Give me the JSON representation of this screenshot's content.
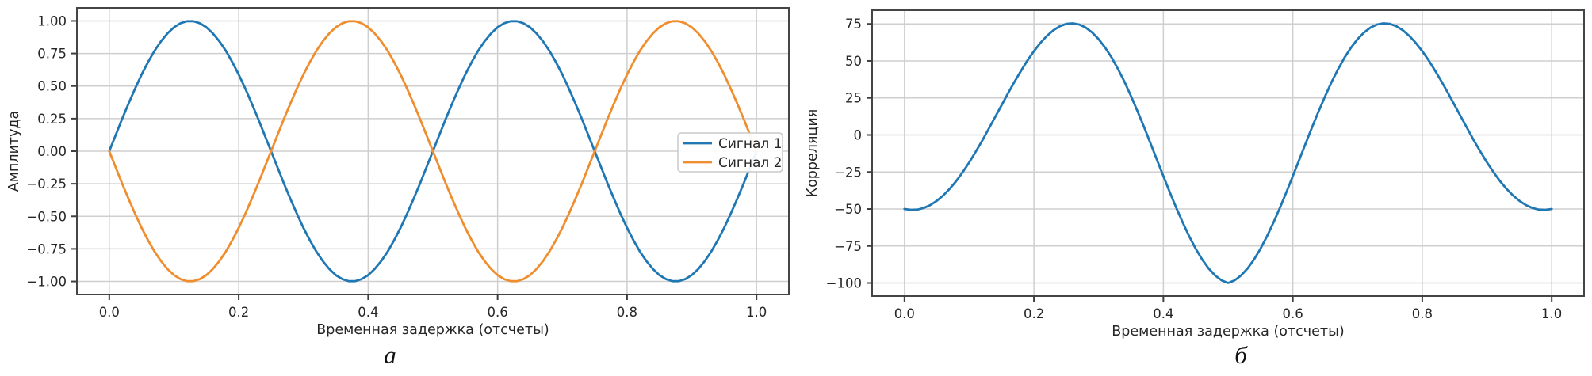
{
  "figure": {
    "background": "#ffffff",
    "grid_color": "#cfcfcf",
    "spine_color": "#454545",
    "tick_color": "#3f3f3f",
    "text_color": "#262626",
    "accent_blue": "#1f77b4",
    "accent_orange": "#ef8e2e"
  },
  "chart_data": [
    {
      "id": "signals",
      "type": "line",
      "title": "",
      "xlabel": "Временная задержка (отсчеты)",
      "ylabel": "Амплитуда",
      "caption": "а",
      "grid": true,
      "xlim": [
        -0.05,
        1.05
      ],
      "ylim": [
        -1.1,
        1.1
      ],
      "xticks": {
        "values": [
          0,
          0.2,
          0.4,
          0.6,
          0.8,
          1.0
        ],
        "labels": [
          "0.0",
          "0.2",
          "0.4",
          "0.6",
          "0.8",
          "1.0"
        ]
      },
      "yticks": {
        "values": [
          1.0,
          0.75,
          0.5,
          0.25,
          0.0,
          -0.25,
          -0.5,
          -0.75,
          -1.0
        ],
        "labels": [
          "1.00",
          "0.75",
          "0.50",
          "0.25",
          "0.00",
          "−0.25",
          "−0.50",
          "−0.75",
          "−1.00"
        ]
      },
      "legend": {
        "position": "center-right",
        "entries": [
          "Сигнал 1",
          "Сигнал 2"
        ]
      },
      "x": [
        0,
        0.01,
        0.02,
        0.03,
        0.04,
        0.05,
        0.06,
        0.07,
        0.08,
        0.09,
        0.1,
        0.11,
        0.12,
        0.13,
        0.14,
        0.15,
        0.16,
        0.17,
        0.18,
        0.19,
        0.2,
        0.21,
        0.22,
        0.23,
        0.24,
        0.25,
        0.26,
        0.27,
        0.28,
        0.29,
        0.3,
        0.31,
        0.32,
        0.33,
        0.34,
        0.35,
        0.36,
        0.37,
        0.38,
        0.39,
        0.4,
        0.41,
        0.42,
        0.43,
        0.44,
        0.45,
        0.46,
        0.47,
        0.48,
        0.49,
        0.5,
        0.51,
        0.52,
        0.53,
        0.54,
        0.55,
        0.56,
        0.57,
        0.58,
        0.59,
        0.6,
        0.61,
        0.62,
        0.63,
        0.64,
        0.65,
        0.66,
        0.67,
        0.68,
        0.69,
        0.7,
        0.71,
        0.72,
        0.73,
        0.74,
        0.75,
        0.76,
        0.77,
        0.78,
        0.79,
        0.8,
        0.81,
        0.82,
        0.83,
        0.84,
        0.85,
        0.86,
        0.87,
        0.88,
        0.89,
        0.9,
        0.91,
        0.92,
        0.93,
        0.94,
        0.95,
        0.96,
        0.97,
        0.98,
        0.99,
        1.0
      ],
      "series": [
        {
          "name": "Сигнал 1",
          "color": "#1f77b4",
          "values": [
            0,
            0.125,
            0.249,
            0.368,
            0.482,
            0.588,
            0.685,
            0.771,
            0.844,
            0.905,
            0.951,
            0.982,
            0.998,
            0.998,
            0.982,
            0.951,
            0.905,
            0.844,
            0.771,
            0.685,
            0.588,
            0.482,
            0.368,
            0.249,
            0.125,
            0,
            -0.125,
            -0.249,
            -0.368,
            -0.482,
            -0.588,
            -0.685,
            -0.771,
            -0.844,
            -0.905,
            -0.951,
            -0.982,
            -0.998,
            -0.998,
            -0.982,
            -0.951,
            -0.905,
            -0.844,
            -0.771,
            -0.685,
            -0.588,
            -0.482,
            -0.368,
            -0.249,
            -0.125,
            0,
            0.125,
            0.249,
            0.368,
            0.482,
            0.588,
            0.685,
            0.771,
            0.844,
            0.905,
            0.951,
            0.982,
            0.998,
            0.998,
            0.982,
            0.951,
            0.905,
            0.844,
            0.771,
            0.685,
            0.588,
            0.482,
            0.368,
            0.249,
            0.125,
            0,
            -0.125,
            -0.249,
            -0.368,
            -0.482,
            -0.588,
            -0.685,
            -0.771,
            -0.844,
            -0.905,
            -0.951,
            -0.982,
            -0.998,
            -0.998,
            -0.982,
            -0.951,
            -0.905,
            -0.844,
            -0.771,
            -0.685,
            -0.588,
            -0.482,
            -0.368,
            -0.249,
            -0.125,
            0
          ]
        },
        {
          "name": "Сигнал 2",
          "color": "#ef8e2e",
          "values": [
            0,
            -0.125,
            -0.249,
            -0.368,
            -0.482,
            -0.588,
            -0.685,
            -0.771,
            -0.844,
            -0.905,
            -0.951,
            -0.982,
            -0.998,
            -0.998,
            -0.982,
            -0.951,
            -0.905,
            -0.844,
            -0.771,
            -0.685,
            -0.588,
            -0.482,
            -0.368,
            -0.249,
            -0.125,
            0,
            0.125,
            0.249,
            0.368,
            0.482,
            0.588,
            0.685,
            0.771,
            0.844,
            0.905,
            0.951,
            0.982,
            0.998,
            0.998,
            0.982,
            0.951,
            0.905,
            0.844,
            0.771,
            0.685,
            0.588,
            0.482,
            0.368,
            0.249,
            0.125,
            0,
            -0.125,
            -0.249,
            -0.368,
            -0.482,
            -0.588,
            -0.685,
            -0.771,
            -0.844,
            -0.905,
            -0.951,
            -0.982,
            -0.998,
            -0.998,
            -0.982,
            -0.951,
            -0.905,
            -0.844,
            -0.771,
            -0.685,
            -0.588,
            -0.482,
            -0.368,
            -0.249,
            -0.125,
            0,
            0.125,
            0.249,
            0.368,
            0.482,
            0.588,
            0.685,
            0.771,
            0.844,
            0.905,
            0.951,
            0.982,
            0.998,
            0.998,
            0.982,
            0.951,
            0.905,
            0.844,
            0.771,
            0.685,
            0.588,
            0.482,
            0.368,
            0.249,
            0.125,
            0
          ]
        }
      ]
    },
    {
      "id": "correlation",
      "type": "line",
      "title": "",
      "xlabel": "Временная задержка (отсчеты)",
      "ylabel": "Корреляция",
      "caption": "б",
      "grid": true,
      "xlim": [
        -0.05,
        1.05
      ],
      "ylim": [
        -108.8,
        84.2
      ],
      "xticks": {
        "values": [
          0,
          0.2,
          0.4,
          0.6,
          0.8,
          1.0
        ],
        "labels": [
          "0.0",
          "0.2",
          "0.4",
          "0.6",
          "0.8",
          "1.0"
        ]
      },
      "yticks": {
        "values": [
          75,
          50,
          25,
          0,
          -25,
          -50,
          -75,
          -100
        ],
        "labels": [
          "75",
          "50",
          "25",
          "0",
          "−25",
          "−50",
          "−75",
          "−100"
        ]
      },
      "legend": null,
      "x": [
        0,
        0.01,
        0.02,
        0.03,
        0.04,
        0.05,
        0.06,
        0.07,
        0.08,
        0.09,
        0.1,
        0.11,
        0.12,
        0.13,
        0.14,
        0.15,
        0.16,
        0.17,
        0.18,
        0.19,
        0.2,
        0.21,
        0.22,
        0.23,
        0.24,
        0.25,
        0.26,
        0.27,
        0.28,
        0.29,
        0.3,
        0.31,
        0.32,
        0.33,
        0.34,
        0.35,
        0.36,
        0.37,
        0.38,
        0.39,
        0.4,
        0.41,
        0.42,
        0.43,
        0.44,
        0.45,
        0.46,
        0.47,
        0.48,
        0.49,
        0.5,
        0.51,
        0.52,
        0.53,
        0.54,
        0.55,
        0.56,
        0.57,
        0.58,
        0.59,
        0.6,
        0.61,
        0.62,
        0.63,
        0.64,
        0.65,
        0.66,
        0.67,
        0.68,
        0.69,
        0.7,
        0.71,
        0.72,
        0.73,
        0.74,
        0.75,
        0.76,
        0.77,
        0.78,
        0.79,
        0.8,
        0.81,
        0.82,
        0.83,
        0.84,
        0.85,
        0.86,
        0.87,
        0.88,
        0.89,
        0.9,
        0.91,
        0.92,
        0.93,
        0.94,
        0.95,
        0.96,
        0.97,
        0.98,
        0.99,
        1.0
      ],
      "series": [
        {
          "name": "Корреляция",
          "color": "#1f77b4",
          "values": [
            -50.0,
            -50.6,
            -50.4,
            -49.3,
            -47.3,
            -44.5,
            -40.8,
            -36.3,
            -31.1,
            -25.1,
            -18.5,
            -11.4,
            -3.9,
            4.0,
            12.0,
            20.1,
            28.1,
            35.9,
            43.3,
            50.3,
            56.6,
            62.2,
            66.9,
            70.7,
            73.4,
            75.0,
            75.4,
            74.6,
            72.5,
            69.2,
            64.7,
            59.0,
            52.3,
            44.5,
            35.8,
            26.3,
            16.1,
            5.5,
            -5.5,
            -16.7,
            -27.8,
            -38.7,
            -49.3,
            -59.3,
            -68.5,
            -76.9,
            -84.1,
            -90.2,
            -94.9,
            -98.2,
            -100.0,
            -98.2,
            -94.9,
            -90.2,
            -84.1,
            -76.9,
            -68.5,
            -59.3,
            -49.3,
            -38.7,
            -27.8,
            -16.7,
            -5.5,
            5.5,
            16.1,
            26.3,
            35.8,
            44.5,
            52.3,
            59.0,
            64.7,
            69.2,
            72.5,
            74.6,
            75.4,
            75.0,
            73.4,
            70.7,
            66.9,
            62.2,
            56.6,
            50.3,
            43.3,
            35.9,
            28.1,
            20.1,
            12.0,
            4.0,
            -3.9,
            -11.4,
            -18.5,
            -25.1,
            -31.1,
            -36.3,
            -40.8,
            -44.5,
            -47.3,
            -49.3,
            -50.4,
            -50.6,
            -50.0
          ]
        }
      ]
    }
  ]
}
